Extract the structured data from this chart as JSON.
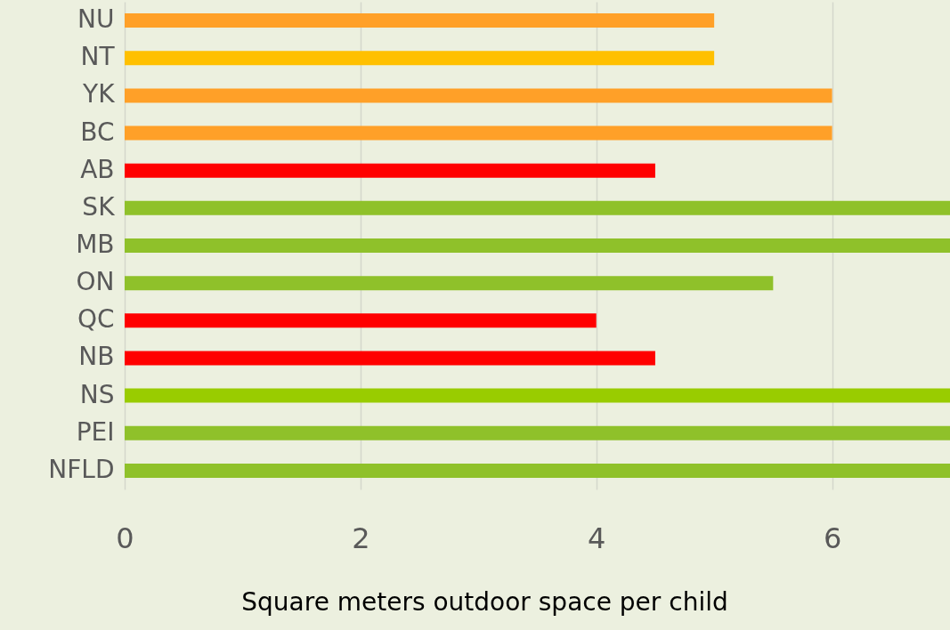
{
  "chart_data": {
    "type": "bar",
    "orientation": "horizontal",
    "xlabel": "Square meters outdoor space per child",
    "categories": [
      "NU",
      "NT",
      "YK",
      "BC",
      "AB",
      "SK",
      "MB",
      "ON",
      "QC",
      "NB",
      "NS",
      "PEI",
      "NFLD"
    ],
    "values": [
      5,
      5,
      6,
      6,
      4.5,
      7,
      7,
      5.5,
      4,
      4.5,
      7,
      7,
      7
    ],
    "colors": [
      "#ffa028",
      "#ffc000",
      "#ffa028",
      "#ffa028",
      "#ff0000",
      "#8fc12a",
      "#8fc12a",
      "#8fc12a",
      "#ff0000",
      "#ff0000",
      "#99cc00",
      "#8fc12a",
      "#8fc12a"
    ],
    "xlim": [
      0,
      7
    ],
    "xticks": [
      0,
      2,
      4,
      6
    ],
    "grid": "x"
  }
}
